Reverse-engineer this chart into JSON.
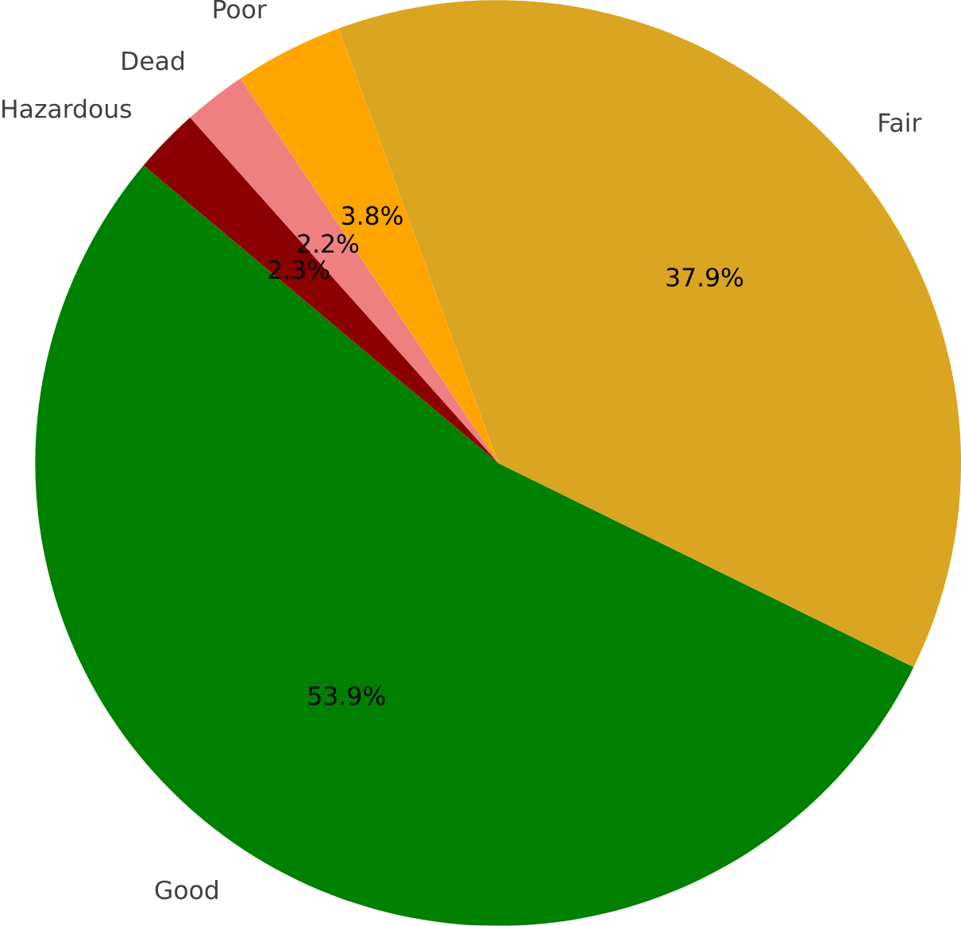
{
  "chart_data": {
    "type": "pie",
    "categories": [
      "Good",
      "Fair",
      "Poor",
      "Dead",
      "Hazardous"
    ],
    "values": [
      53.9,
      37.9,
      3.8,
      2.2,
      2.3
    ],
    "value_labels": [
      "53.9%",
      "37.9%",
      "3.8%",
      "2.2%",
      "2.3%"
    ],
    "colors": [
      "#008000",
      "#daa520",
      "#ffa500",
      "#f08080",
      "#8b0000"
    ]
  }
}
